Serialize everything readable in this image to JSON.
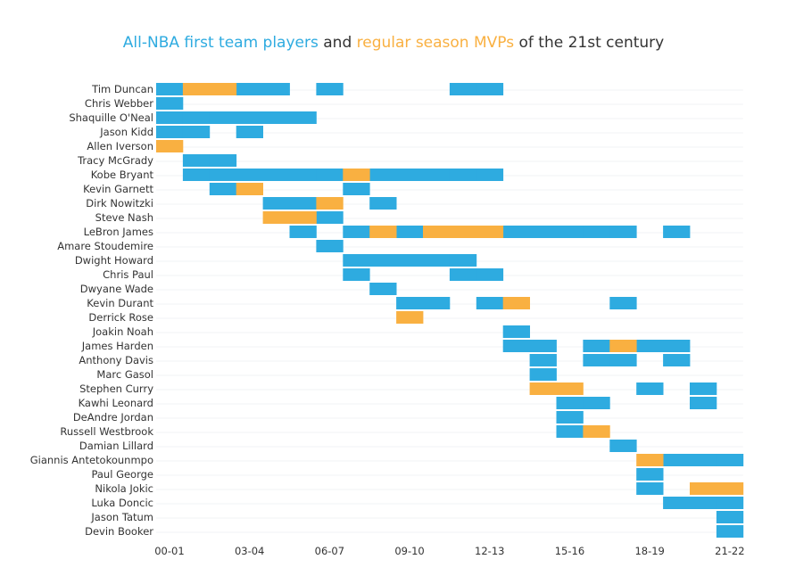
{
  "title": {
    "part1": "All-NBA first team players",
    "part2": " and ",
    "part3": "regular season MVPs",
    "part4": " of the 21st century"
  },
  "colors": {
    "all_nba": "#2eabe0",
    "mvp": "#f9b041",
    "text": "#333333",
    "grid": "#f2f3f5"
  },
  "chart_data": {
    "type": "bar",
    "subtype": "timeline",
    "xlabel": "",
    "ylabel": "",
    "seasons": [
      "00-01",
      "01-02",
      "02-03",
      "03-04",
      "04-05",
      "05-06",
      "06-07",
      "07-08",
      "08-09",
      "09-10",
      "10-11",
      "11-12",
      "12-13",
      "13-14",
      "14-15",
      "15-16",
      "16-17",
      "17-18",
      "18-19",
      "19-20",
      "20-21",
      "21-22"
    ],
    "x_tick_labels": [
      "00-01",
      "03-04",
      "06-07",
      "09-10",
      "12-13",
      "15-16",
      "18-19",
      "21-22"
    ],
    "series": [
      {
        "name": "All-NBA first team players",
        "key": "all_nba"
      },
      {
        "name": "regular season MVPs",
        "key": "mvp"
      }
    ],
    "players": [
      {
        "name": "Tim Duncan",
        "all_nba": [
          "00-01",
          "03-04",
          "04-05",
          "06-07",
          "11-12",
          "12-13"
        ],
        "mvp": [
          "01-02",
          "02-03"
        ]
      },
      {
        "name": "Chris Webber",
        "all_nba": [
          "00-01"
        ],
        "mvp": []
      },
      {
        "name": "Shaquille O'Neal",
        "all_nba": [
          "00-01",
          "01-02",
          "02-03",
          "03-04",
          "04-05",
          "05-06"
        ],
        "mvp": []
      },
      {
        "name": "Jason Kidd",
        "all_nba": [
          "00-01",
          "01-02",
          "03-04"
        ],
        "mvp": []
      },
      {
        "name": "Allen Iverson",
        "all_nba": [],
        "mvp": [
          "00-01"
        ]
      },
      {
        "name": "Tracy McGrady",
        "all_nba": [
          "01-02",
          "02-03"
        ],
        "mvp": []
      },
      {
        "name": "Kobe Bryant",
        "all_nba": [
          "01-02",
          "02-03",
          "03-04",
          "04-05",
          "05-06",
          "06-07",
          "08-09",
          "09-10",
          "10-11",
          "11-12",
          "12-13"
        ],
        "mvp": [
          "07-08"
        ]
      },
      {
        "name": "Kevin Garnett",
        "all_nba": [
          "02-03",
          "07-08"
        ],
        "mvp": [
          "03-04"
        ]
      },
      {
        "name": "Dirk Nowitzki",
        "all_nba": [
          "04-05",
          "05-06",
          "08-09"
        ],
        "mvp": [
          "06-07"
        ]
      },
      {
        "name": "Steve Nash",
        "all_nba": [
          "06-07"
        ],
        "mvp": [
          "04-05",
          "05-06"
        ]
      },
      {
        "name": "LeBron James",
        "all_nba": [
          "05-06",
          "07-08",
          "09-10",
          "13-14",
          "14-15",
          "15-16",
          "16-17",
          "17-18",
          "19-20"
        ],
        "mvp": [
          "08-09",
          "10-11",
          "11-12",
          "12-13"
        ]
      },
      {
        "name": "Amare Stoudemire",
        "all_nba": [
          "06-07"
        ],
        "mvp": []
      },
      {
        "name": "Dwight Howard",
        "all_nba": [
          "07-08",
          "08-09",
          "09-10",
          "10-11",
          "11-12"
        ],
        "mvp": []
      },
      {
        "name": "Chris Paul",
        "all_nba": [
          "07-08",
          "11-12",
          "12-13"
        ],
        "mvp": []
      },
      {
        "name": "Dwyane Wade",
        "all_nba": [
          "08-09"
        ],
        "mvp": []
      },
      {
        "name": "Kevin Durant",
        "all_nba": [
          "09-10",
          "10-11",
          "12-13",
          "17-18"
        ],
        "mvp": [
          "13-14"
        ]
      },
      {
        "name": "Derrick Rose",
        "all_nba": [],
        "mvp": [
          "09-10"
        ]
      },
      {
        "name": "Joakin Noah",
        "all_nba": [
          "13-14"
        ],
        "mvp": []
      },
      {
        "name": "James Harden",
        "all_nba": [
          "13-14",
          "14-15",
          "16-17",
          "18-19",
          "19-20"
        ],
        "mvp": [
          "17-18"
        ]
      },
      {
        "name": "Anthony Davis",
        "all_nba": [
          "14-15",
          "16-17",
          "17-18",
          "19-20"
        ],
        "mvp": []
      },
      {
        "name": "Marc Gasol",
        "all_nba": [
          "14-15"
        ],
        "mvp": []
      },
      {
        "name": "Stephen Curry",
        "all_nba": [
          "18-19",
          "20-21"
        ],
        "mvp": [
          "14-15",
          "15-16"
        ]
      },
      {
        "name": "Kawhi Leonard",
        "all_nba": [
          "15-16",
          "16-17",
          "20-21"
        ],
        "mvp": []
      },
      {
        "name": "DeAndre Jordan",
        "all_nba": [
          "15-16"
        ],
        "mvp": []
      },
      {
        "name": "Russell Westbrook",
        "all_nba": [
          "15-16"
        ],
        "mvp": [
          "16-17"
        ]
      },
      {
        "name": "Damian Lillard",
        "all_nba": [
          "17-18"
        ],
        "mvp": []
      },
      {
        "name": "Giannis Antetokounmpo",
        "all_nba": [
          "19-20",
          "20-21",
          "21-22"
        ],
        "mvp": [
          "18-19"
        ]
      },
      {
        "name": "Paul George",
        "all_nba": [
          "18-19"
        ],
        "mvp": []
      },
      {
        "name": "Nikola Jokic",
        "all_nba": [
          "18-19"
        ],
        "mvp": [
          "20-21",
          "21-22"
        ]
      },
      {
        "name": "Luka Doncic",
        "all_nba": [
          "19-20",
          "20-21",
          "21-22"
        ],
        "mvp": []
      },
      {
        "name": "Jason Tatum",
        "all_nba": [
          "21-22"
        ],
        "mvp": []
      },
      {
        "name": "Devin Booker",
        "all_nba": [
          "21-22"
        ],
        "mvp": []
      }
    ]
  }
}
